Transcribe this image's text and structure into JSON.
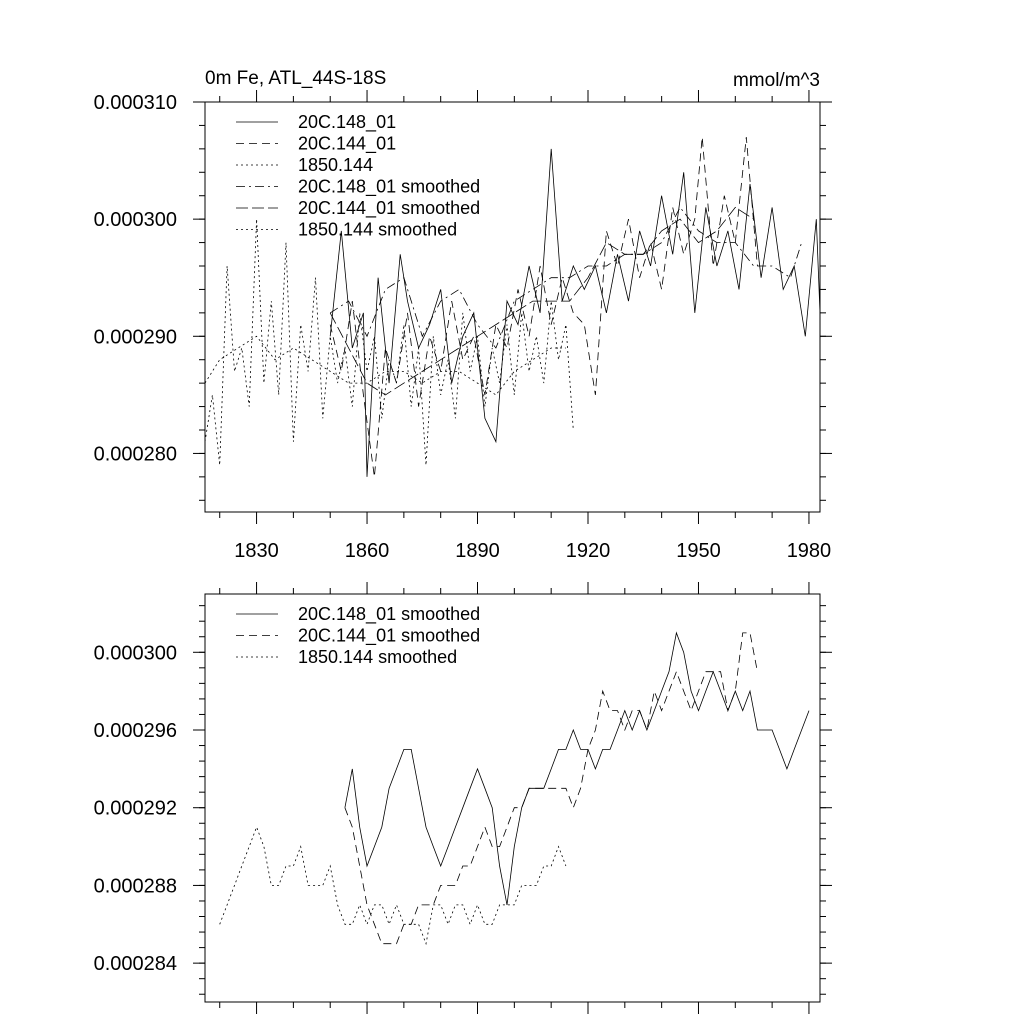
{
  "chart_data": [
    {
      "type": "line",
      "title": "0m Fe, ATL_44S-18S",
      "units": "mmol/m^3",
      "xlim": [
        1816,
        1983
      ],
      "ylim": [
        0.000275,
        0.00031
      ],
      "x_ticks": [
        1830,
        1860,
        1890,
        1920,
        1950,
        1980
      ],
      "y_ticks": [
        "0.000280",
        "0.000290",
        "0.000300",
        "0.000310"
      ],
      "y_tick_values": [
        0.00028,
        0.00029,
        0.0003,
        0.00031
      ],
      "legend_position": "top-left",
      "series": [
        {
          "name": "20C.148_01",
          "style": "solid",
          "x": [
            1850,
            1853,
            1856,
            1859,
            1860,
            1863,
            1866,
            1869,
            1871,
            1874,
            1877,
            1880,
            1883,
            1886,
            1889,
            1892,
            1895,
            1898,
            1901,
            1904,
            1907,
            1910,
            1913,
            1916,
            1919,
            1922,
            1925,
            1928,
            1931,
            1934,
            1937,
            1940,
            1943,
            1946,
            1949,
            1952,
            1955,
            1958,
            1961,
            1964,
            1967,
            1970,
            1973,
            1976,
            1979,
            1982,
            1983
          ],
          "values": [
            0.00029,
            0.000299,
            0.000289,
            0.000292,
            0.000278,
            0.000295,
            0.000286,
            0.000297,
            0.000293,
            0.000289,
            0.000291,
            0.000294,
            0.000286,
            0.00029,
            0.000292,
            0.000283,
            0.000281,
            0.000293,
            0.000291,
            0.000296,
            0.000292,
            0.000306,
            0.000293,
            0.000296,
            0.000294,
            0.000296,
            0.000292,
            0.000297,
            0.000293,
            0.000299,
            0.000296,
            0.000302,
            0.000297,
            0.000304,
            0.000292,
            0.000301,
            0.000296,
            0.000299,
            0.000294,
            0.000303,
            0.000295,
            0.000301,
            0.000294,
            0.000296,
            0.00029,
            0.0003,
            0.000292
          ]
        },
        {
          "name": "20C.144_01",
          "style": "dashed",
          "x": [
            1850,
            1853,
            1856,
            1859,
            1862,
            1865,
            1868,
            1871,
            1874,
            1877,
            1880,
            1883,
            1886,
            1889,
            1892,
            1895,
            1898,
            1901,
            1904,
            1907,
            1910,
            1913,
            1916,
            1919,
            1922,
            1925,
            1928,
            1931,
            1934,
            1937,
            1940,
            1943,
            1946,
            1949,
            1951,
            1954,
            1957,
            1960,
            1963,
            1966
          ],
          "values": [
            0.000291,
            0.000287,
            0.000293,
            0.000285,
            0.000278,
            0.000289,
            0.000286,
            0.000292,
            0.000284,
            0.00029,
            0.000287,
            0.000293,
            0.000288,
            0.00029,
            0.000285,
            0.000291,
            0.000289,
            0.000294,
            0.00029,
            0.000296,
            0.000291,
            0.000295,
            0.000292,
            0.000291,
            0.000285,
            0.000299,
            0.000296,
            0.0003,
            0.000295,
            0.000298,
            0.000294,
            0.000301,
            0.000297,
            0.0003,
            0.000307,
            0.000296,
            0.000302,
            0.000298,
            0.000307,
            0.000296
          ]
        },
        {
          "name": "1850.144",
          "style": "dotted",
          "x": [
            1816,
            1818,
            1820,
            1822,
            1824,
            1826,
            1828,
            1830,
            1832,
            1834,
            1836,
            1838,
            1840,
            1842,
            1844,
            1846,
            1848,
            1850,
            1852,
            1854,
            1856,
            1858,
            1860,
            1862,
            1864,
            1866,
            1868,
            1870,
            1872,
            1874,
            1876,
            1878,
            1880,
            1882,
            1884,
            1886,
            1888,
            1890,
            1892,
            1894,
            1896,
            1898,
            1900,
            1902,
            1904,
            1906,
            1908,
            1910,
            1912,
            1914,
            1916
          ],
          "values": [
            0.000281,
            0.000285,
            0.000279,
            0.000296,
            0.000287,
            0.000289,
            0.000284,
            0.0003,
            0.000286,
            0.000293,
            0.000285,
            0.000298,
            0.000281,
            0.000291,
            0.000287,
            0.000295,
            0.000283,
            0.00029,
            0.000286,
            0.000289,
            0.000284,
            0.000292,
            0.000287,
            0.00029,
            0.000283,
            0.000288,
            0.000286,
            0.000291,
            0.000284,
            0.000289,
            0.000279,
            0.00029,
            0.000285,
            0.000288,
            0.000283,
            0.000292,
            0.000287,
            0.00029,
            0.000284,
            0.000289,
            0.000286,
            0.000291,
            0.000285,
            0.000292,
            0.000287,
            0.00029,
            0.000286,
            0.000293,
            0.000288,
            0.000291,
            0.000282
          ]
        },
        {
          "name": "20C.148_01 smoothed",
          "style": "dashdot",
          "x": [
            1850,
            1855,
            1860,
            1865,
            1870,
            1875,
            1880,
            1885,
            1890,
            1895,
            1900,
            1905,
            1910,
            1915,
            1920,
            1925,
            1930,
            1935,
            1940,
            1945,
            1950,
            1955,
            1960,
            1965,
            1970,
            1975,
            1978
          ],
          "values": [
            0.000292,
            0.000293,
            0.00029,
            0.000294,
            0.000295,
            0.00029,
            0.000293,
            0.000294,
            0.000291,
            0.000289,
            0.000293,
            0.000294,
            0.000295,
            0.000295,
            0.000296,
            0.000296,
            0.000297,
            0.000297,
            0.000298,
            0.000301,
            0.000299,
            0.000298,
            0.000298,
            0.000296,
            0.000296,
            0.000295,
            0.000298
          ]
        },
        {
          "name": "20C.144_01 smoothed",
          "style": "longdash",
          "x": [
            1850,
            1855,
            1860,
            1865,
            1870,
            1875,
            1880,
            1885,
            1890,
            1895,
            1900,
            1905,
            1910,
            1915,
            1920,
            1925,
            1930,
            1935,
            1940,
            1945,
            1950,
            1955,
            1960,
            1965
          ],
          "values": [
            0.000292,
            0.000289,
            0.000286,
            0.000285,
            0.000286,
            0.000287,
            0.000288,
            0.000289,
            0.00029,
            0.000291,
            0.000292,
            0.000293,
            0.000293,
            0.000293,
            0.000295,
            0.000298,
            0.000297,
            0.000297,
            0.000299,
            0.0003,
            0.000298,
            0.000299,
            0.000301,
            0.0003
          ]
        },
        {
          "name": "1850.144 smoothed",
          "style": "dotted",
          "x": [
            1816,
            1820,
            1825,
            1830,
            1835,
            1840,
            1845,
            1850,
            1855,
            1860,
            1865,
            1870,
            1875,
            1880,
            1885,
            1890,
            1895,
            1900,
            1905,
            1910,
            1914
          ],
          "values": [
            0.000286,
            0.000288,
            0.000289,
            0.00029,
            0.000288,
            0.000289,
            0.000288,
            0.000287,
            0.000286,
            0.000286,
            0.000287,
            0.000287,
            0.000286,
            0.000287,
            0.000287,
            0.000286,
            0.000285,
            0.000287,
            0.000288,
            0.000289,
            0.000289
          ]
        }
      ]
    },
    {
      "type": "line",
      "xlim": [
        1816,
        1983
      ],
      "ylim": [
        0.000282,
        0.000303
      ],
      "x_ticks": [
        1830,
        1860,
        1890,
        1920,
        1950,
        1980
      ],
      "y_ticks": [
        "0.000284",
        "0.000288",
        "0.000292",
        "0.000296",
        "0.000300"
      ],
      "y_tick_values": [
        0.000284,
        0.000288,
        0.000292,
        0.000296,
        0.0003
      ],
      "legend_position": "top-left",
      "series": [
        {
          "name": "20C.148_01 smoothed",
          "style": "solid",
          "x": [
            1854,
            1856,
            1858,
            1860,
            1862,
            1864,
            1866,
            1868,
            1870,
            1872,
            1874,
            1876,
            1878,
            1880,
            1882,
            1884,
            1886,
            1888,
            1890,
            1892,
            1894,
            1896,
            1898,
            1900,
            1902,
            1904,
            1906,
            1908,
            1910,
            1912,
            1914,
            1916,
            1918,
            1920,
            1922,
            1924,
            1926,
            1928,
            1930,
            1932,
            1934,
            1936,
            1938,
            1940,
            1942,
            1944,
            1946,
            1948,
            1950,
            1952,
            1954,
            1956,
            1958,
            1960,
            1962,
            1964,
            1966,
            1968,
            1970,
            1972,
            1974,
            1976,
            1978,
            1980
          ],
          "values": [
            0.000292,
            0.000294,
            0.000291,
            0.000289,
            0.00029,
            0.000291,
            0.000293,
            0.000294,
            0.000295,
            0.000295,
            0.000293,
            0.000291,
            0.00029,
            0.000289,
            0.00029,
            0.000291,
            0.000292,
            0.000293,
            0.000294,
            0.000293,
            0.000292,
            0.000289,
            0.000287,
            0.00029,
            0.000292,
            0.000293,
            0.000293,
            0.000293,
            0.000294,
            0.000295,
            0.000295,
            0.000296,
            0.000295,
            0.000295,
            0.000294,
            0.000295,
            0.000295,
            0.000296,
            0.000297,
            0.000296,
            0.000297,
            0.000296,
            0.000297,
            0.000298,
            0.000299,
            0.000301,
            0.0003,
            0.000298,
            0.000297,
            0.000298,
            0.000299,
            0.000298,
            0.000297,
            0.000298,
            0.000297,
            0.000298,
            0.000296,
            0.000296,
            0.000296,
            0.000295,
            0.000294,
            0.000295,
            0.000296,
            0.000297
          ]
        },
        {
          "name": "20C.144_01 smoothed",
          "style": "dashed",
          "x": [
            1854,
            1856,
            1858,
            1860,
            1862,
            1864,
            1866,
            1868,
            1870,
            1872,
            1874,
            1876,
            1878,
            1880,
            1882,
            1884,
            1886,
            1888,
            1890,
            1892,
            1894,
            1896,
            1898,
            1900,
            1902,
            1904,
            1906,
            1908,
            1910,
            1912,
            1914,
            1916,
            1918,
            1920,
            1922,
            1924,
            1926,
            1928,
            1930,
            1932,
            1934,
            1936,
            1938,
            1940,
            1942,
            1944,
            1946,
            1948,
            1950,
            1952,
            1954,
            1956,
            1958,
            1960,
            1962,
            1964,
            1966
          ],
          "values": [
            0.000292,
            0.000291,
            0.000289,
            0.000287,
            0.000286,
            0.000285,
            0.000285,
            0.000285,
            0.000286,
            0.000286,
            0.000287,
            0.000287,
            0.000287,
            0.000288,
            0.000288,
            0.000288,
            0.000289,
            0.000289,
            0.00029,
            0.000291,
            0.00029,
            0.00029,
            0.000291,
            0.000292,
            0.000292,
            0.000293,
            0.000293,
            0.000293,
            0.000293,
            0.000293,
            0.000293,
            0.000292,
            0.000293,
            0.000295,
            0.000296,
            0.000298,
            0.000297,
            0.000297,
            0.000296,
            0.000297,
            0.000297,
            0.000296,
            0.000298,
            0.000297,
            0.000298,
            0.000299,
            0.000298,
            0.000297,
            0.000298,
            0.000299,
            0.000299,
            0.000299,
            0.000297,
            0.000298,
            0.000301,
            0.000301,
            0.000299
          ]
        },
        {
          "name": "1850.144 smoothed",
          "style": "dotted",
          "x": [
            1820,
            1822,
            1824,
            1826,
            1828,
            1830,
            1832,
            1834,
            1836,
            1838,
            1840,
            1842,
            1844,
            1846,
            1848,
            1850,
            1852,
            1854,
            1856,
            1858,
            1860,
            1862,
            1864,
            1866,
            1868,
            1870,
            1872,
            1874,
            1876,
            1878,
            1880,
            1882,
            1884,
            1886,
            1888,
            1890,
            1892,
            1894,
            1896,
            1898,
            1900,
            1902,
            1904,
            1906,
            1908,
            1910,
            1912,
            1914
          ],
          "values": [
            0.000286,
            0.000287,
            0.000288,
            0.000289,
            0.00029,
            0.000291,
            0.00029,
            0.000288,
            0.000288,
            0.000289,
            0.000289,
            0.00029,
            0.000288,
            0.000288,
            0.000288,
            0.000289,
            0.000287,
            0.000286,
            0.000286,
            0.000287,
            0.000286,
            0.000287,
            0.000287,
            0.000286,
            0.000287,
            0.000286,
            0.000286,
            0.000286,
            0.000285,
            0.000287,
            0.000287,
            0.000286,
            0.000287,
            0.000287,
            0.000286,
            0.000287,
            0.000286,
            0.000286,
            0.000287,
            0.000287,
            0.000287,
            0.000288,
            0.000288,
            0.000288,
            0.000289,
            0.000289,
            0.00029,
            0.000289
          ]
        }
      ]
    }
  ]
}
